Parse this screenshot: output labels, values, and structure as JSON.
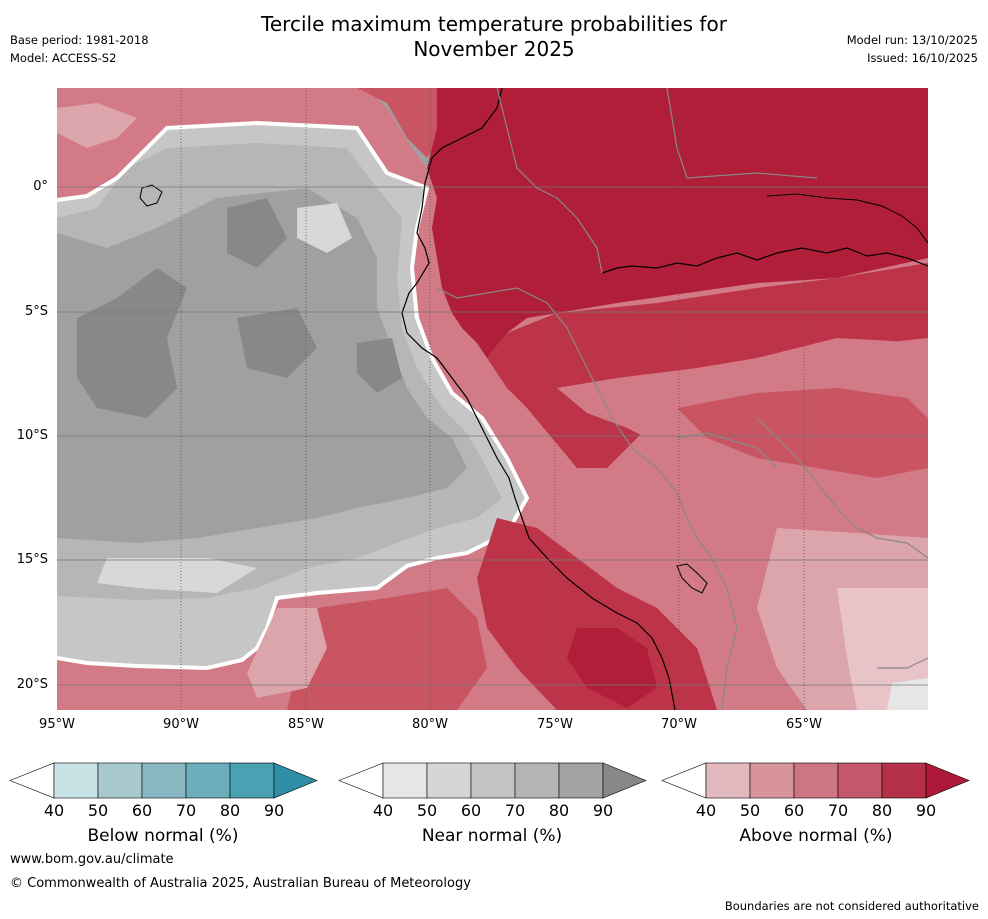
{
  "header": {
    "title_line1": "Tercile maximum temperature probabilities for",
    "title_line2": "November 2025",
    "base_period": "Base period: 1981-2018",
    "model": "Model: ACCESS-S2",
    "model_run": "Model run: 13/10/2025",
    "issued": "Issued: 16/10/2025"
  },
  "map": {
    "lat_labels": [
      "0°",
      "5°S",
      "10°S",
      "15°S",
      "20°S"
    ],
    "lon_labels": [
      "95°W",
      "90°W",
      "85°W",
      "80°W",
      "75°W",
      "70°W",
      "65°W"
    ],
    "colors": {
      "land_above_90": "#b01e3a",
      "above_80": "#bd3448",
      "above_70": "#c95563",
      "above_60": "#d27a85",
      "above_50": "#dca4ab",
      "above_40": "#e8c4c8",
      "near_90": "#888888",
      "near_80": "#a0a0a0",
      "near_70": "#b6b6b6",
      "near_60": "#c6c6c6",
      "near_50": "#d8d8d8",
      "near_40": "#e6e6e6",
      "below_40": "#c9e2e6",
      "coast": "#000000",
      "borders": "#888888"
    }
  },
  "colorbars": [
    {
      "name": "below",
      "label": "Below normal (%)",
      "ticks": [
        "40",
        "50",
        "60",
        "70",
        "80",
        "90"
      ],
      "colors": [
        "#ffffff",
        "#c9e2e6",
        "#a7c8cd",
        "#8ab8c2",
        "#6baebb",
        "#4aa1b2",
        "#2f8ea6"
      ]
    },
    {
      "name": "near",
      "label": "Near normal (%)",
      "ticks": [
        "40",
        "50",
        "60",
        "70",
        "80",
        "90"
      ],
      "colors": [
        "#ffffff",
        "#e6e6e6",
        "#d6d6d6",
        "#c4c4c4",
        "#b4b4b4",
        "#a2a2a2",
        "#888888"
      ]
    },
    {
      "name": "above",
      "label": "Above normal (%)",
      "ticks": [
        "40",
        "50",
        "60",
        "70",
        "80",
        "90"
      ],
      "colors": [
        "#ffffff",
        "#e2b9bf",
        "#d8949d",
        "#cd7580",
        "#c3596a",
        "#b53049",
        "#ad1a39"
      ]
    }
  ],
  "footer": {
    "website": "www.bom.gov.au/climate",
    "copyright": "© Commonwealth of Australia 2025, Australian Bureau of Meteorology",
    "disclaimer": "Boundaries are not considered authoritative"
  }
}
